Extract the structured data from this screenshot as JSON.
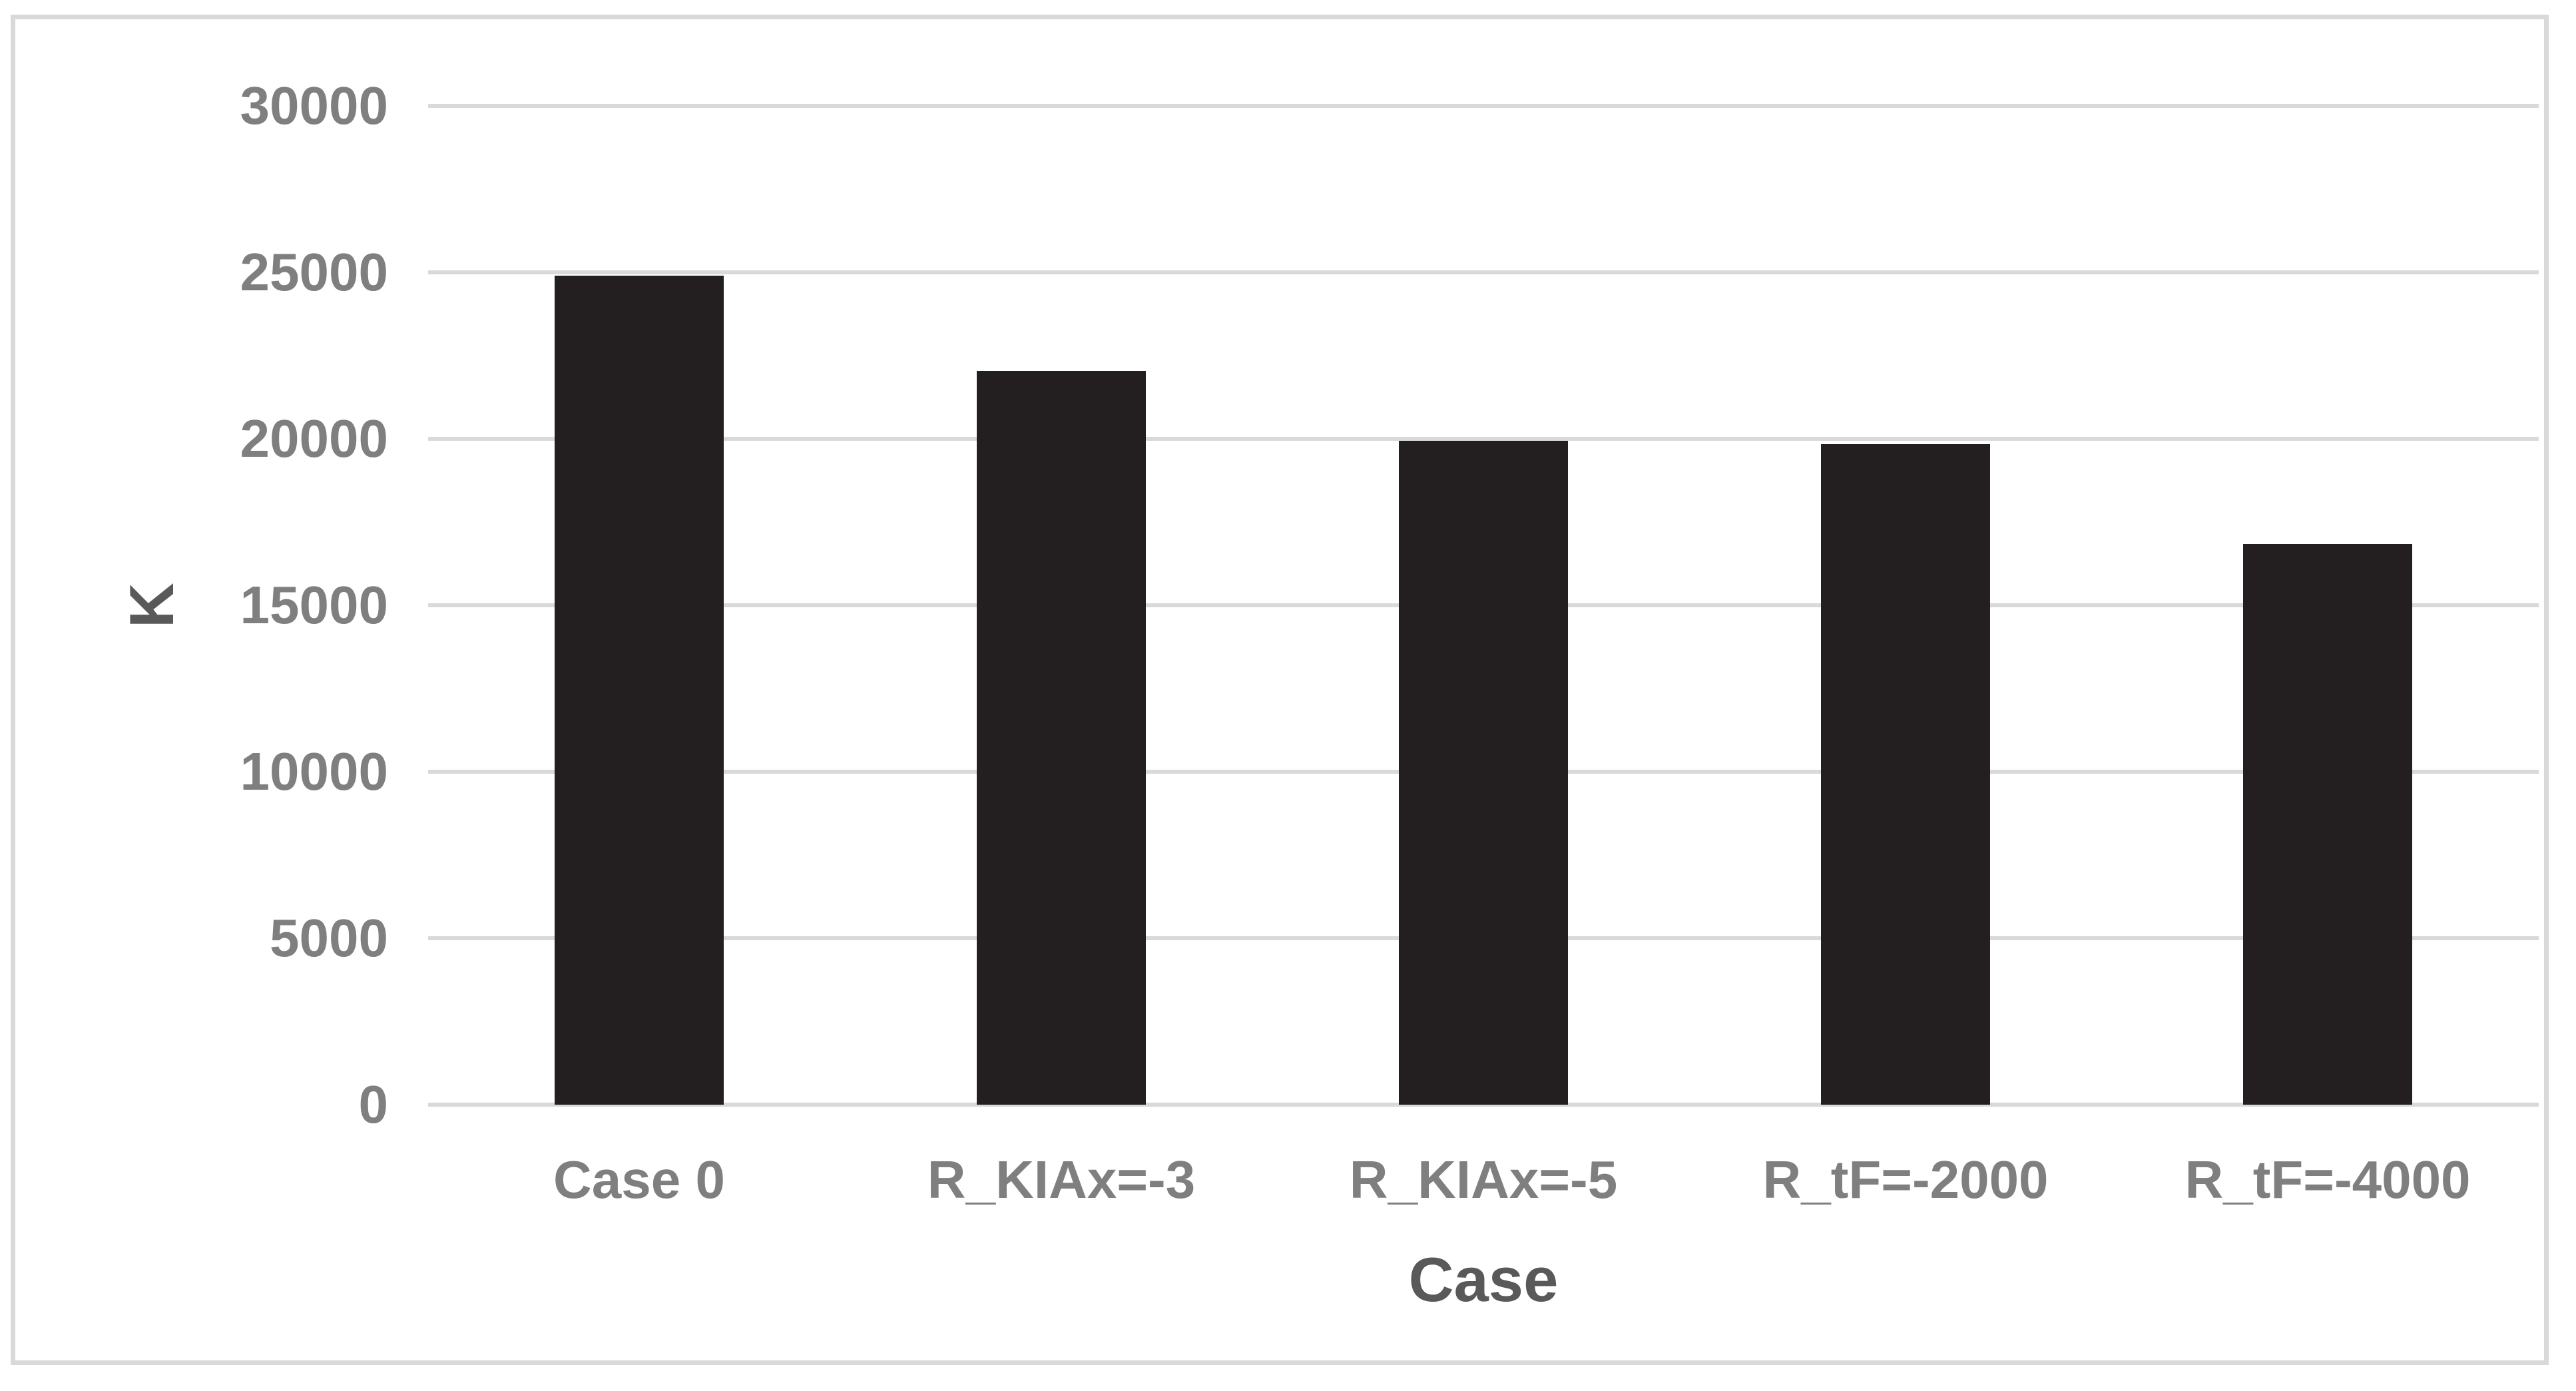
{
  "chart_data": {
    "type": "bar",
    "title": "",
    "categories": [
      "Case 0",
      "R_KIAx=-3",
      "R_KIAx=-5",
      "R_tF=-2000",
      "R_tF=-4000"
    ],
    "values": [
      24900,
      22050,
      19950,
      19850,
      16850
    ],
    "xlabel": "Case",
    "ylabel": "K",
    "ylim": [
      0,
      30000
    ],
    "ytick_interval": 5000,
    "ytick_labels": [
      "0",
      "5000",
      "10000",
      "15000",
      "20000",
      "25000",
      "30000"
    ],
    "grid": true,
    "legend": false,
    "colors": {
      "bar": "#231f20",
      "gridline": "#d9d9d9",
      "tick_label": "#7f7f7f",
      "axis_title": "#595959",
      "frame_border": "#d9d9d9",
      "background": "#ffffff"
    }
  }
}
